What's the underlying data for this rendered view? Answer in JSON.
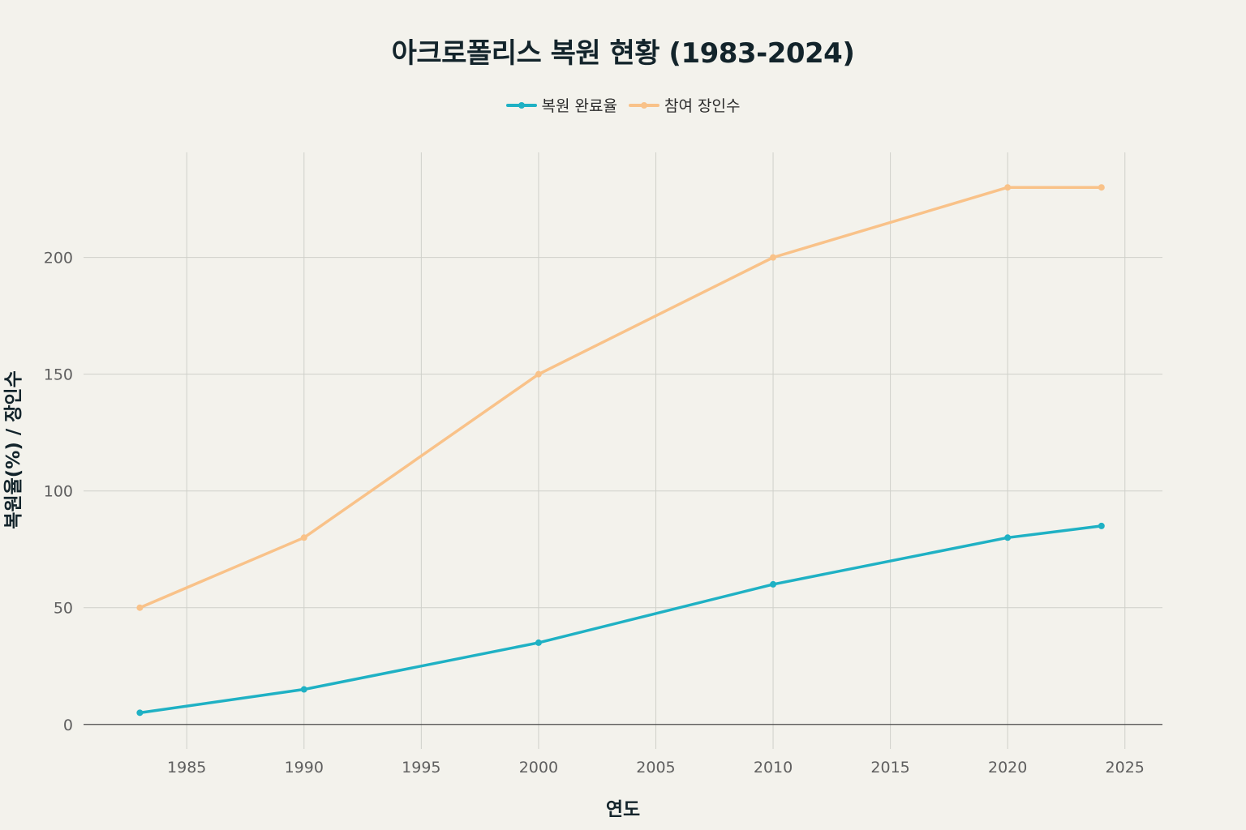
{
  "chart_data": {
    "type": "line",
    "title": "아크로폴리스 복원 현황 (1983-2024)",
    "xlabel": "연도",
    "ylabel": "복원율(%) / 장인수",
    "x": [
      1983,
      1990,
      2000,
      2010,
      2020,
      2024
    ],
    "series": [
      {
        "name": "복원 완료율",
        "color": "#1fb1c4",
        "values": [
          5,
          15,
          35,
          60,
          80,
          85
        ]
      },
      {
        "name": "참여 장인수",
        "color": "#f9c289",
        "values": [
          50,
          80,
          150,
          200,
          230,
          230
        ]
      }
    ],
    "xlim": [
      1980.6,
      2026.6
    ],
    "ylim": [
      -10.5,
      245
    ],
    "xticks": [
      1985,
      1990,
      1995,
      2000,
      2005,
      2010,
      2015,
      2020,
      2025
    ],
    "yticks": [
      0,
      50,
      100,
      150,
      200
    ],
    "grid": true,
    "legend_position": "top-center"
  }
}
